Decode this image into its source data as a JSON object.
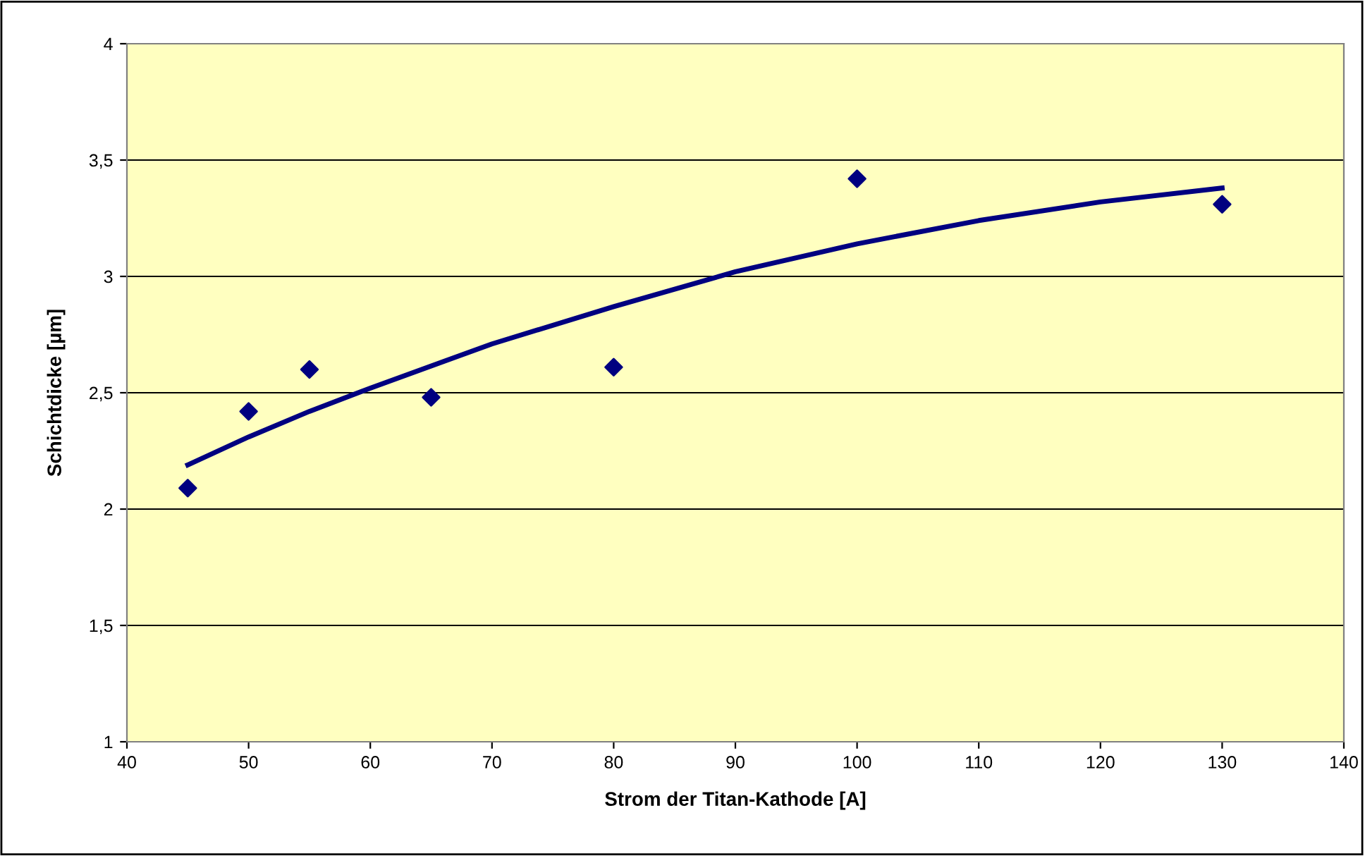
{
  "chart_data": {
    "type": "scatter",
    "xlabel": "Strom der Titan-Kathode [A]",
    "ylabel": "Schichtdicke [µm]",
    "series": [
      {
        "color": "#000080",
        "marker": "diamond",
        "x": [
          45,
          50,
          55,
          65,
          80,
          100,
          130
        ],
        "values": [
          2.09,
          2.42,
          2.6,
          2.48,
          2.61,
          3.42,
          3.31
        ]
      },
      {
        "type": "line",
        "color": "#000080",
        "line_style": "solid",
        "x": [
          45,
          50,
          55,
          60,
          70,
          80,
          90,
          100,
          110,
          120,
          130
        ],
        "values": [
          2.19,
          2.31,
          2.42,
          2.52,
          2.71,
          2.87,
          3.02,
          3.14,
          3.24,
          3.32,
          3.38
        ]
      }
    ],
    "xlim": [
      40,
      140
    ],
    "xticks": [
      40,
      50,
      60,
      70,
      80,
      90,
      100,
      110,
      120,
      130,
      140
    ],
    "ylim": [
      1,
      4
    ],
    "yticks": [
      1,
      {
        "value": 1.5,
        "label": "1,5"
      },
      2,
      {
        "value": 2.5,
        "label": "2,5"
      },
      3,
      {
        "value": 3.5,
        "label": "3,5"
      },
      4
    ],
    "grid": "y"
  }
}
